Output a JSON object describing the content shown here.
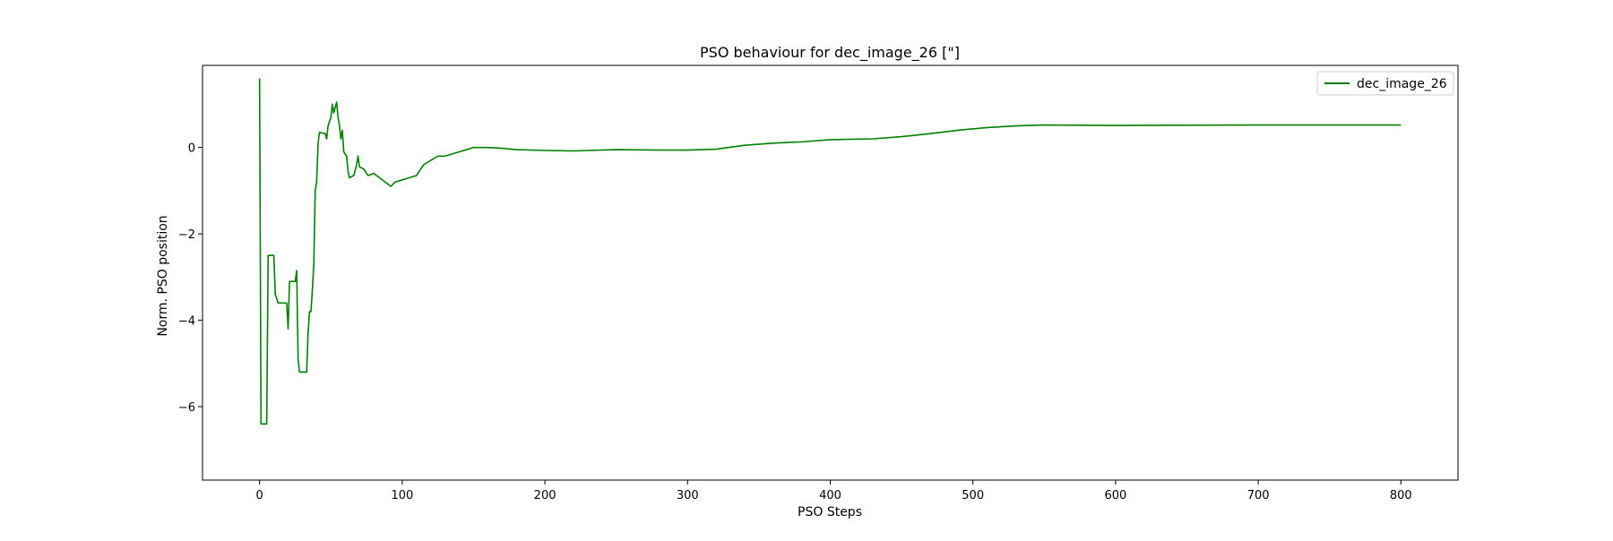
{
  "chart_data": {
    "type": "line",
    "title": "PSO behaviour for dec_image_26 [\"]",
    "xlabel": "PSO Steps",
    "ylabel": "Norm. PSO position",
    "xlim": [
      -40,
      840
    ],
    "ylim": [
      -7.7,
      1.9
    ],
    "xticks": [
      0,
      100,
      200,
      300,
      400,
      500,
      600,
      700,
      800
    ],
    "yticks": [
      0,
      -2,
      -4,
      -6
    ],
    "ytick_labels": [
      "0",
      "−2",
      "−4",
      "−6"
    ],
    "grid": false,
    "legend_position": "top-right",
    "series": [
      {
        "name": "dec_image_26",
        "color": "#008000",
        "points": [
          [
            0,
            1.6
          ],
          [
            1,
            -6.4
          ],
          [
            5,
            -6.4
          ],
          [
            6,
            -2.5
          ],
          [
            10,
            -2.5
          ],
          [
            11,
            -3.4
          ],
          [
            13,
            -3.6
          ],
          [
            19,
            -3.6
          ],
          [
            20,
            -4.2
          ],
          [
            21,
            -3.1
          ],
          [
            25,
            -3.1
          ],
          [
            26,
            -2.85
          ],
          [
            27,
            -4.9
          ],
          [
            28,
            -5.2
          ],
          [
            33,
            -5.2
          ],
          [
            34,
            -4.3
          ],
          [
            35,
            -3.8
          ],
          [
            36,
            -3.8
          ],
          [
            37,
            -3.3
          ],
          [
            38,
            -2.7
          ],
          [
            39,
            -1.0
          ],
          [
            40,
            -0.8
          ],
          [
            41,
            0.1
          ],
          [
            42,
            0.35
          ],
          [
            46,
            0.32
          ],
          [
            47,
            0.2
          ],
          [
            48,
            0.5
          ],
          [
            50,
            0.7
          ],
          [
            51,
            1.0
          ],
          [
            52,
            0.8
          ],
          [
            54,
            1.05
          ],
          [
            55,
            0.7
          ],
          [
            56,
            0.5
          ],
          [
            57,
            0.2
          ],
          [
            58,
            0.4
          ],
          [
            59,
            -0.1
          ],
          [
            61,
            -0.2
          ],
          [
            62,
            -0.55
          ],
          [
            63,
            -0.7
          ],
          [
            66,
            -0.65
          ],
          [
            68,
            -0.4
          ],
          [
            69,
            -0.2
          ],
          [
            70,
            -0.45
          ],
          [
            73,
            -0.5
          ],
          [
            76,
            -0.65
          ],
          [
            80,
            -0.6
          ],
          [
            84,
            -0.7
          ],
          [
            88,
            -0.8
          ],
          [
            92,
            -0.9
          ],
          [
            95,
            -0.8
          ],
          [
            100,
            -0.75
          ],
          [
            105,
            -0.7
          ],
          [
            110,
            -0.65
          ],
          [
            115,
            -0.4
          ],
          [
            120,
            -0.3
          ],
          [
            125,
            -0.2
          ],
          [
            130,
            -0.2
          ],
          [
            140,
            -0.1
          ],
          [
            145,
            -0.05
          ],
          [
            150,
            0.0
          ],
          [
            160,
            0.0
          ],
          [
            170,
            -0.02
          ],
          [
            180,
            -0.05
          ],
          [
            200,
            -0.07
          ],
          [
            220,
            -0.08
          ],
          [
            250,
            -0.05
          ],
          [
            280,
            -0.06
          ],
          [
            300,
            -0.06
          ],
          [
            320,
            -0.04
          ],
          [
            340,
            0.05
          ],
          [
            360,
            0.1
          ],
          [
            380,
            0.13
          ],
          [
            400,
            0.18
          ],
          [
            430,
            0.2
          ],
          [
            450,
            0.25
          ],
          [
            470,
            0.32
          ],
          [
            490,
            0.4
          ],
          [
            510,
            0.46
          ],
          [
            530,
            0.5
          ],
          [
            550,
            0.52
          ],
          [
            600,
            0.51
          ],
          [
            700,
            0.52
          ],
          [
            750,
            0.52
          ],
          [
            800,
            0.52
          ]
        ]
      }
    ]
  }
}
